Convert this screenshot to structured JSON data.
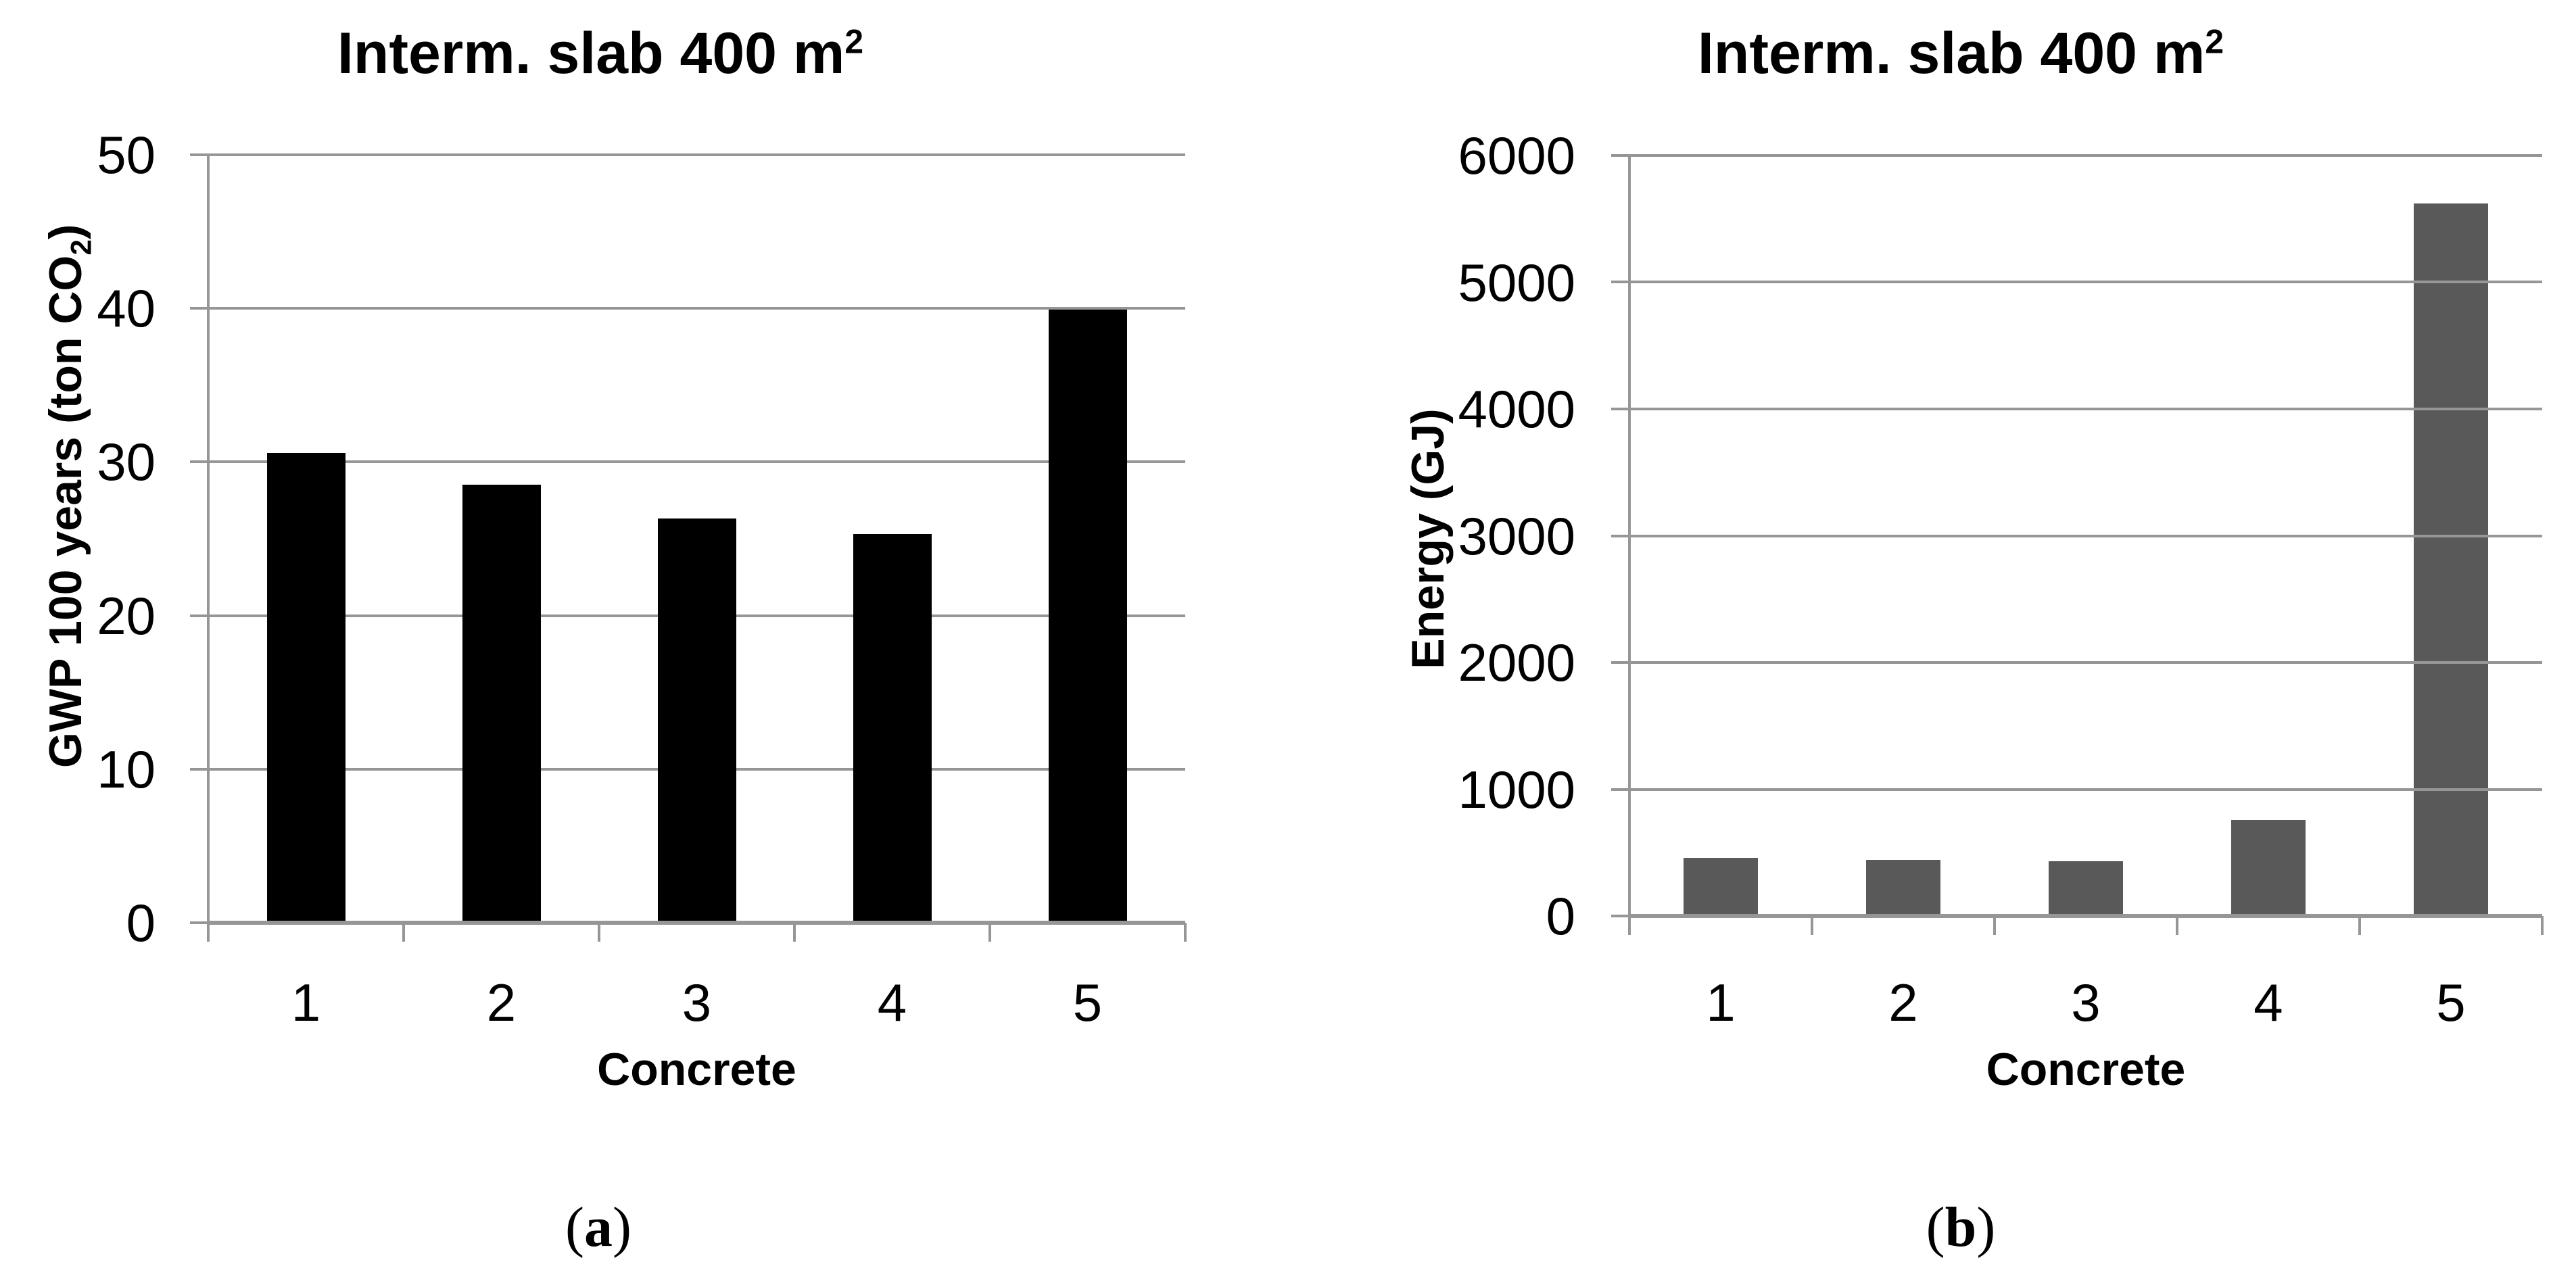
{
  "colors": {
    "background": "#ffffff",
    "axis_and_grid": "#969696",
    "text": "#000000",
    "bar_panel_a": "#000000",
    "bar_panel_b": "#595959"
  },
  "chart_data": [
    {
      "type": "bar",
      "panel": "a",
      "title": "Interm. slab 400 m²",
      "title_text": "Interm. slab 400 m",
      "title_superscript": "2",
      "ylabel": "GWP 100 years (ton CO₂)",
      "ylabel_prefix": "GWP 100 years (ton CO",
      "ylabel_subscript": "2",
      "ylabel_suffix": ")",
      "xlabel": "Concrete",
      "categories": [
        "1",
        "2",
        "3",
        "4",
        "5"
      ],
      "values": [
        30.6,
        28.5,
        26.3,
        25.3,
        39.9
      ],
      "ylim": [
        0,
        50
      ],
      "ytick_labels": [
        "0",
        "10",
        "20",
        "30",
        "40",
        "50"
      ],
      "ytick_values": [
        0,
        10,
        20,
        30,
        40,
        50
      ],
      "bar_color": "#000000",
      "grid": "on",
      "legend": "none",
      "caption_open": "(",
      "caption_letter": "a",
      "caption_close": ")"
    },
    {
      "type": "bar",
      "panel": "b",
      "title": "Interm. slab 400 m²",
      "title_text": "Interm. slab 400 m",
      "title_superscript": "2",
      "ylabel": "Energy (GJ)",
      "ylabel_prefix": "Energy (GJ",
      "ylabel_subscript": "",
      "ylabel_suffix": ")",
      "xlabel": "Concrete",
      "categories": [
        "1",
        "2",
        "3",
        "4",
        "5"
      ],
      "values": [
        460,
        445,
        430,
        760,
        5620
      ],
      "ylim": [
        0,
        6000
      ],
      "ytick_labels": [
        "0",
        "1000",
        "2000",
        "3000",
        "4000",
        "5000",
        "6000"
      ],
      "ytick_values": [
        0,
        1000,
        2000,
        3000,
        4000,
        5000,
        6000
      ],
      "bar_color": "#595959",
      "grid": "on",
      "legend": "none",
      "caption_open": "(",
      "caption_letter": "b",
      "caption_close": ")"
    }
  ]
}
